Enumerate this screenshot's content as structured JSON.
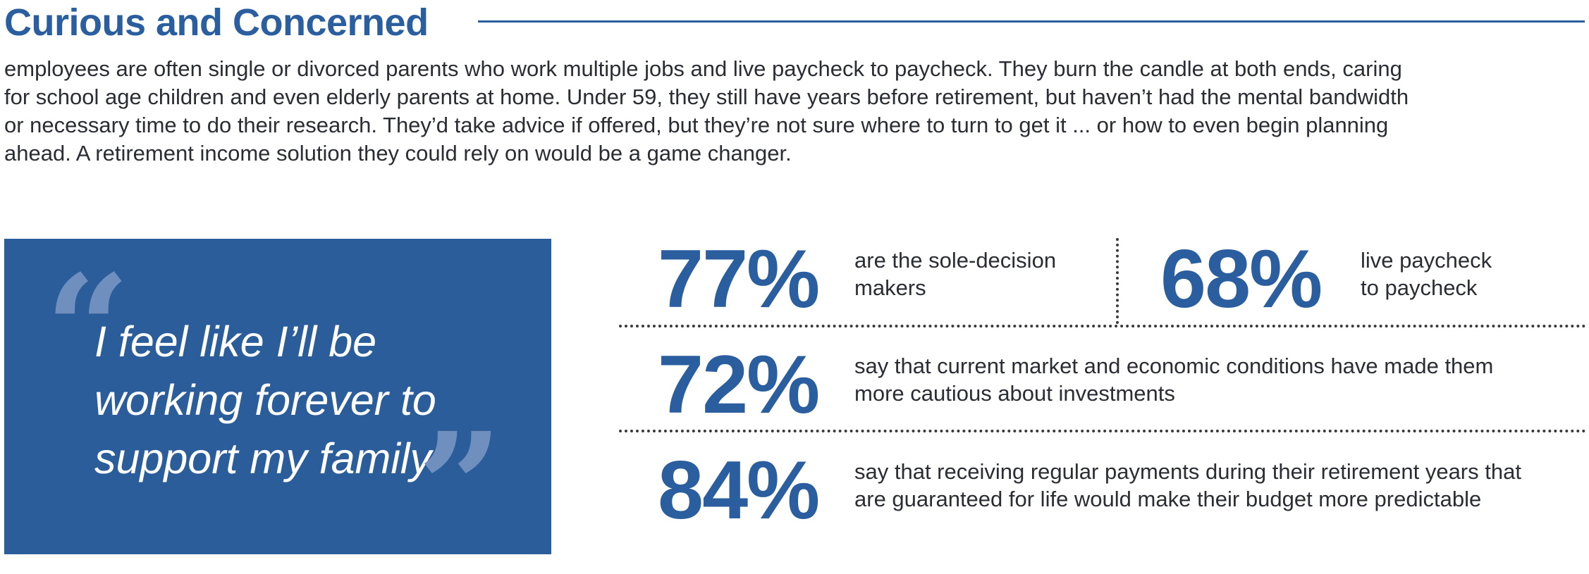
{
  "header": {
    "title": "Curious and Concerned"
  },
  "intro": {
    "lines": [
      "employees are often single or divorced parents who work multiple jobs and live paycheck to paycheck. They burn the candle at both ends, caring",
      "for school age children and even elderly parents at home. Under 59, they still have years before retirement, but haven’t had the mental bandwidth",
      "or necessary time to do their research. They’d take advice if offered, but they’re not sure where to turn to get it ... or how to even begin planning",
      "ahead. A retirement income solution they could rely on would be a game changer."
    ]
  },
  "quote": {
    "open_mark": "“",
    "close_mark": "”",
    "lines": [
      "I feel like I’ll be",
      "working forever to",
      "support my family"
    ]
  },
  "stats": [
    {
      "value": "77%",
      "lines": [
        "are the sole-decision",
        "makers"
      ]
    },
    {
      "value": "68%",
      "lines": [
        "live paycheck",
        "to paycheck"
      ]
    },
    {
      "value": "72%",
      "lines": [
        "say that current market and economic conditions have made them",
        "more cautious about investments"
      ]
    },
    {
      "value": "84%",
      "lines": [
        "say that receiving regular payments during their retirement years that",
        "are guaranteed for life would make their budget more predictable"
      ]
    }
  ],
  "colors": {
    "brand_blue": "#2a5e9e",
    "quote_box": "#2b5d9a",
    "quote_marks": "#6f8fbf",
    "body_text": "#2a2d33"
  }
}
